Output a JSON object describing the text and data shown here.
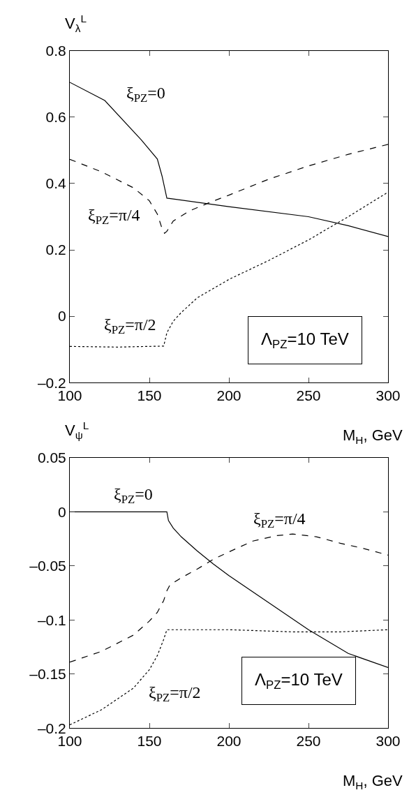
{
  "chart_data": [
    {
      "type": "line",
      "ylabel": "V$_{λ}$$^{L}$",
      "xlabel": "M$_{H}$, GeV",
      "annotations": [
        "Λ$_{PZ}$=10 TeV"
      ],
      "xlim": [
        100,
        300
      ],
      "xticks": [
        100,
        150,
        200,
        250,
        300
      ],
      "ylim": [
        -0.2,
        0.8
      ],
      "yticks": [
        {
          "value": -0.2,
          "label": "–0.2"
        },
        0,
        0.2,
        0.4,
        0.6,
        0.8
      ],
      "series": [
        {
          "name": "ξ$_{PZ}$=0",
          "color": "#000000",
          "line_style": "solid",
          "x": [
            100,
            122,
            145,
            155,
            158,
            161,
            200,
            250,
            275,
            300
          ],
          "values": [
            0.705,
            0.65,
            0.531,
            0.474,
            0.422,
            0.356,
            0.33,
            0.3,
            0.273,
            0.24
          ]
        },
        {
          "name": "ξ$_{PZ}$=π/4",
          "color": "#000000",
          "line_style": "dashed",
          "x": [
            100,
            120,
            140,
            150,
            155,
            158,
            159.5,
            161,
            165,
            175,
            188,
            200,
            225,
            250,
            275,
            300
          ],
          "values": [
            0.473,
            0.435,
            0.387,
            0.348,
            0.308,
            0.264,
            0.25,
            0.256,
            0.287,
            0.317,
            0.343,
            0.365,
            0.413,
            0.453,
            0.488,
            0.518
          ]
        },
        {
          "name": "ξ$_{PZ}$=π/2",
          "color": "#000000",
          "line_style": "dotted",
          "x": [
            100,
            130,
            159,
            161,
            165,
            170,
            180,
            200,
            225,
            250,
            275,
            300
          ],
          "values": [
            -0.091,
            -0.093,
            -0.09,
            -0.05,
            -0.015,
            0.011,
            0.055,
            0.111,
            0.168,
            0.23,
            0.3,
            0.374
          ]
        }
      ]
    },
    {
      "type": "line",
      "ylabel": "V$_{ψ}$$^{L}$",
      "xlabel": "M$_{H}$, GeV",
      "annotations": [
        "Λ$_{PZ}$=10 TeV"
      ],
      "xlim": [
        100,
        300
      ],
      "xticks": [
        100,
        150,
        200,
        250,
        300
      ],
      "ylim": [
        -0.2,
        0.05
      ],
      "yticks": [
        {
          "value": -0.2,
          "label": "–0.2"
        },
        {
          "value": -0.15,
          "label": "–0.15"
        },
        {
          "value": -0.1,
          "label": "–0.1"
        },
        {
          "value": -0.05,
          "label": "–0.05"
        },
        0,
        0.05
      ],
      "series": [
        {
          "name": "ξ$_{PZ}$=0",
          "color": "#000000",
          "line_style": "solid",
          "x": [
            100,
            161,
            162,
            165,
            170,
            180,
            190,
            200,
            225,
            250,
            275,
            300
          ],
          "values": [
            0,
            0,
            -0.008,
            -0.015,
            -0.023,
            -0.036,
            -0.048,
            -0.059,
            -0.084,
            -0.109,
            -0.131,
            -0.144
          ]
        },
        {
          "name": "ξ$_{PZ}$=π/4",
          "color": "#000000",
          "line_style": "dashed",
          "x": [
            100,
            120,
            140,
            150,
            155,
            159,
            161,
            163,
            170,
            180,
            190,
            200,
            215,
            230,
            240,
            255,
            270,
            285,
            300
          ],
          "values": [
            -0.139,
            -0.129,
            -0.114,
            -0.101,
            -0.093,
            -0.082,
            -0.073,
            -0.0675,
            -0.061,
            -0.053,
            -0.044,
            -0.037,
            -0.027,
            -0.022,
            -0.0205,
            -0.023,
            -0.029,
            -0.034,
            -0.04
          ]
        },
        {
          "name": "ξ$_{PZ}$=π/2",
          "color": "#000000",
          "line_style": "dotted",
          "x": [
            100,
            120,
            140,
            150,
            155,
            159,
            161,
            200,
            240,
            270,
            300
          ],
          "values": [
            -0.197,
            -0.183,
            -0.163,
            -0.146,
            -0.133,
            -0.118,
            -0.109,
            -0.109,
            -0.111,
            -0.111,
            -0.109
          ]
        }
      ]
    }
  ]
}
